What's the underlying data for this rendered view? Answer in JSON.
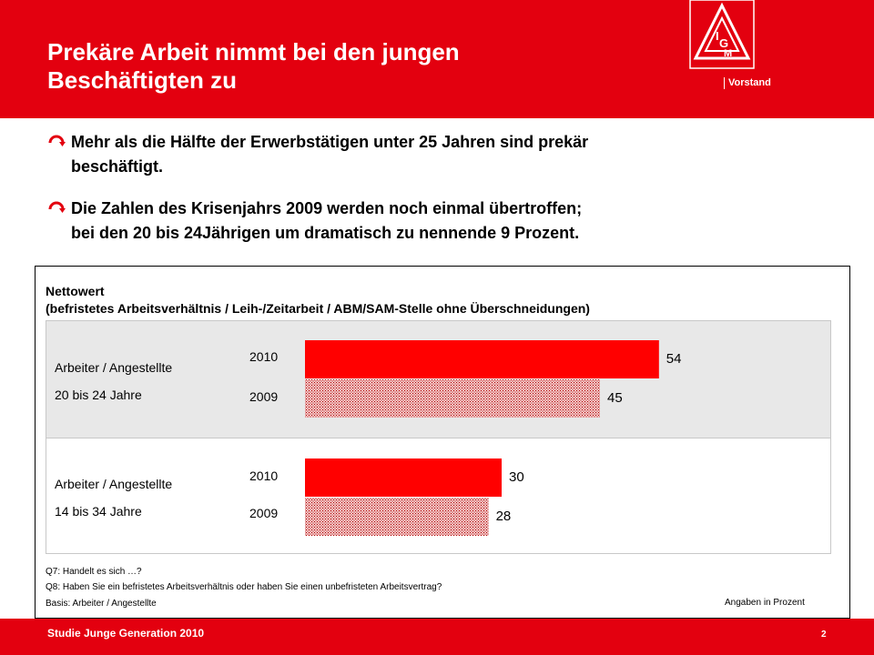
{
  "header": {
    "title_line1": "Prekäre Arbeit nimmt bei den jungen",
    "title_line2": "Beschäftigten zu",
    "org_label": "Vorstand",
    "logo_text": "IG M"
  },
  "bullets": [
    {
      "line1": "Mehr als die Hälfte der Erwerbstätigen unter 25 Jahren sind prekär",
      "line2": "beschäftigt."
    },
    {
      "line1": "Die Zahlen des Krisenjahrs 2009 werden noch einmal übertroffen;",
      "line2": "bei den 20 bis 24Jährigen um dramatisch zu nennende 9 Prozent."
    }
  ],
  "chart_data": {
    "type": "bar",
    "orientation": "horizontal",
    "title": "Nettowert",
    "subtitle": "(befristetes Arbeitsverhältnis / Leih-/Zeitarbeit / ABM/SAM-Stelle ohne Überschneidungen)",
    "groups": [
      {
        "label_line1": "Arbeiter / Angestellte",
        "label_line2": "20 bis 24 Jahre",
        "bars": [
          {
            "year": "2010",
            "value": 54
          },
          {
            "year": "2009",
            "value": 45
          }
        ]
      },
      {
        "label_line1": "Arbeiter / Angestellte",
        "label_line2": "14 bis 34 Jahre",
        "bars": [
          {
            "year": "2010",
            "value": 30
          },
          {
            "year": "2009",
            "value": 28
          }
        ]
      }
    ],
    "series_colors": {
      "2010": "#ff0000",
      "2009": "#d88080"
    },
    "unit_note": "Angaben in Prozent"
  },
  "notes": {
    "q7": "Q7: Handelt es sich …?",
    "q8": "Q8: Haben Sie ein befristetes Arbeitsverhältnis oder haben Sie einen unbefristeten Arbeitsvertrag?",
    "basis": "Basis: Arbeiter / Angestellte"
  },
  "footer": {
    "study": "Studie Junge Generation 2010",
    "page": "2"
  },
  "colors": {
    "brand_red": "#e3000f"
  }
}
